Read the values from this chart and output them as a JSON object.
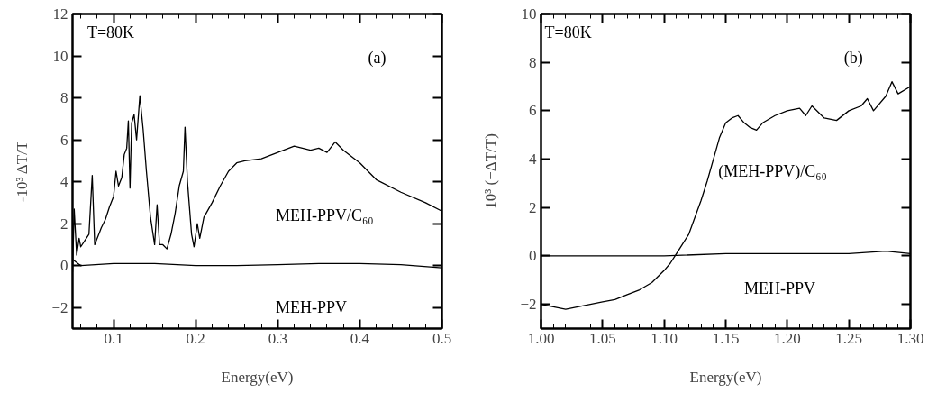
{
  "chart_data": [
    {
      "type": "line",
      "xlabel": "Energy(eV)",
      "ylabel": "-10³ ΔT/T",
      "annotations": [
        "T=80K",
        "(a)"
      ],
      "xlim": [
        0.05,
        0.5
      ],
      "ylim": [
        -3,
        12
      ],
      "xticks": [
        0.1,
        0.2,
        0.3,
        0.4,
        0.5
      ],
      "yticks": [
        -2,
        0,
        2,
        4,
        6,
        8,
        10,
        12
      ],
      "grid": false,
      "series": [
        {
          "name": "MEH-PPV/C₆₀",
          "color": "#000000",
          "x": [
            0.05,
            0.052,
            0.055,
            0.058,
            0.06,
            0.065,
            0.07,
            0.074,
            0.077,
            0.08,
            0.085,
            0.09,
            0.095,
            0.1,
            0.103,
            0.106,
            0.11,
            0.113,
            0.116,
            0.118,
            0.12,
            0.122,
            0.125,
            0.128,
            0.132,
            0.136,
            0.14,
            0.145,
            0.15,
            0.153,
            0.156,
            0.16,
            0.165,
            0.17,
            0.175,
            0.18,
            0.185,
            0.187,
            0.19,
            0.195,
            0.198,
            0.202,
            0.205,
            0.21,
            0.22,
            0.23,
            0.24,
            0.25,
            0.26,
            0.28,
            0.3,
            0.32,
            0.34,
            0.35,
            0.36,
            0.37,
            0.38,
            0.4,
            0.42,
            0.45,
            0.48,
            0.5
          ],
          "values": [
            -0.3,
            2.7,
            0.5,
            1.3,
            0.9,
            1.2,
            1.5,
            4.3,
            1.0,
            1.3,
            1.8,
            2.2,
            2.8,
            3.3,
            4.5,
            3.8,
            4.2,
            5.3,
            5.6,
            6.9,
            3.7,
            6.8,
            7.2,
            6.0,
            8.1,
            6.5,
            4.5,
            2.3,
            1.0,
            2.9,
            1.0,
            1.0,
            0.8,
            1.5,
            2.5,
            3.8,
            4.5,
            6.6,
            4.0,
            1.5,
            0.9,
            2.0,
            1.3,
            2.3,
            3.0,
            3.8,
            4.5,
            4.9,
            5.0,
            5.1,
            5.4,
            5.7,
            5.5,
            5.6,
            5.4,
            5.9,
            5.5,
            4.9,
            4.1,
            3.5,
            3.0,
            2.6
          ]
        },
        {
          "name": "MEH-PPV",
          "color": "#000000",
          "x": [
            0.05,
            0.06,
            0.1,
            0.15,
            0.2,
            0.25,
            0.3,
            0.35,
            0.4,
            0.45,
            0.5
          ],
          "values": [
            0.3,
            0.0,
            0.1,
            0.1,
            0.0,
            0.0,
            0.05,
            0.1,
            0.1,
            0.05,
            -0.1
          ]
        }
      ]
    },
    {
      "type": "line",
      "xlabel": "Energy(eV)",
      "ylabel": "10³ (−ΔT/T)",
      "annotations": [
        "T=80K",
        "(b)"
      ],
      "xlim": [
        1.0,
        1.3
      ],
      "ylim": [
        -3,
        10
      ],
      "xticks": [
        {
          "value": 1.0,
          "label": "1.00"
        },
        {
          "value": 1.05,
          "label": "1.05"
        },
        {
          "value": 1.1,
          "label": "1.10"
        },
        {
          "value": 1.15,
          "label": "1.15"
        },
        {
          "value": 1.2,
          "label": "1.20"
        },
        {
          "value": 1.25,
          "label": "1.25"
        },
        {
          "value": 1.3,
          "label": "1.30"
        }
      ],
      "yticks": [
        -2,
        0,
        2,
        4,
        6,
        8,
        10
      ],
      "grid": false,
      "series": [
        {
          "name": "(MEH-PPV)/C₆₀",
          "color": "#000000",
          "x": [
            1.0,
            1.01,
            1.02,
            1.03,
            1.04,
            1.05,
            1.06,
            1.07,
            1.08,
            1.09,
            1.1,
            1.105,
            1.11,
            1.115,
            1.12,
            1.125,
            1.13,
            1.135,
            1.14,
            1.145,
            1.15,
            1.155,
            1.16,
            1.165,
            1.17,
            1.175,
            1.18,
            1.19,
            1.2,
            1.21,
            1.215,
            1.22,
            1.23,
            1.24,
            1.25,
            1.26,
            1.265,
            1.27,
            1.28,
            1.285,
            1.29,
            1.3
          ],
          "values": [
            -2.0,
            -2.1,
            -2.2,
            -2.1,
            -2.0,
            -1.9,
            -1.8,
            -1.6,
            -1.4,
            -1.1,
            -0.6,
            -0.3,
            0.1,
            0.5,
            0.9,
            1.6,
            2.3,
            3.1,
            4.0,
            4.9,
            5.5,
            5.7,
            5.8,
            5.5,
            5.3,
            5.2,
            5.5,
            5.8,
            6.0,
            6.1,
            5.8,
            6.2,
            5.7,
            5.6,
            6.0,
            6.2,
            6.5,
            6.0,
            6.6,
            7.2,
            6.7,
            7.0
          ]
        },
        {
          "name": "MEH-PPV",
          "color": "#000000",
          "x": [
            1.0,
            1.05,
            1.1,
            1.15,
            1.2,
            1.25,
            1.28,
            1.3
          ],
          "values": [
            0.0,
            0.0,
            0.0,
            0.1,
            0.1,
            0.1,
            0.2,
            0.1
          ]
        }
      ]
    }
  ]
}
